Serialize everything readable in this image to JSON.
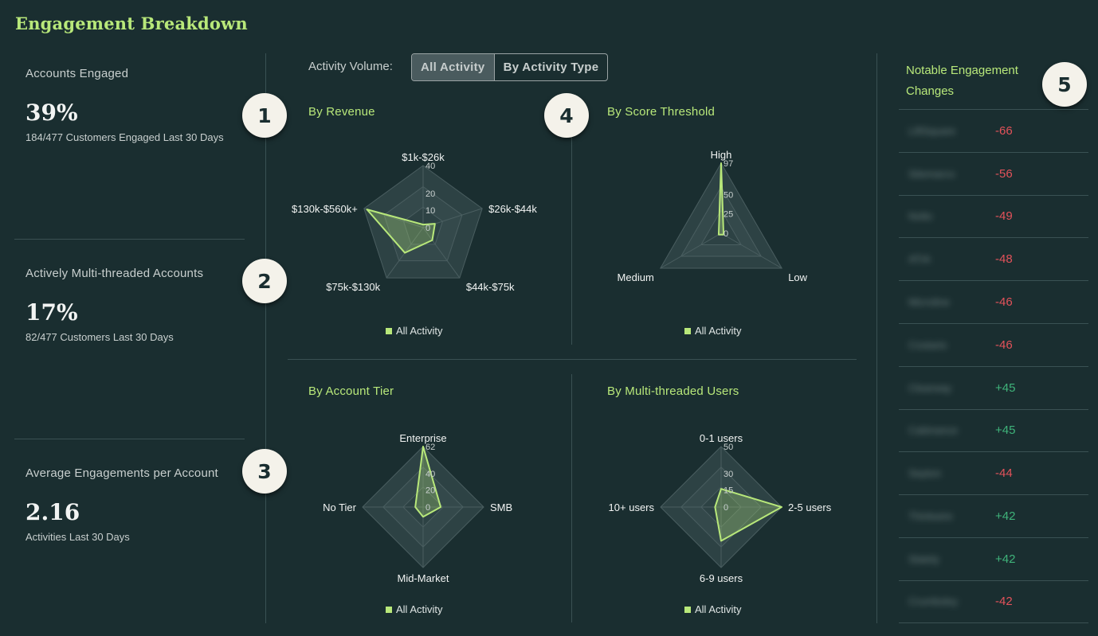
{
  "page_title": "Engagement Breakdown",
  "metrics": [
    {
      "label": "Accounts Engaged",
      "value": "39%",
      "sub": "184/477 Customers Engaged Last 30 Days"
    },
    {
      "label": "Actively Multi-threaded Accounts",
      "value": "17%",
      "sub": "82/477 Customers Last 30 Days"
    },
    {
      "label": "Average Engagements per Account",
      "value": "2.16",
      "sub": "Activities Last 30 Days"
    }
  ],
  "badges": [
    "1",
    "2",
    "3",
    "4",
    "5"
  ],
  "toggle": {
    "label": "Activity Volume:",
    "options": [
      "All Activity",
      "By Activity Type"
    ],
    "selected": "All Activity"
  },
  "colors": {
    "accent": "#b8e87a",
    "background": "#1a2e30",
    "negative": "#e2525a",
    "positive": "#3fb37a"
  },
  "chart_data": [
    {
      "type": "radar",
      "title": "By Revenue",
      "categories": [
        "$1k-$26k",
        "$26k-$44k",
        "$44k-$75k",
        "$75k-$130k",
        "$130k-$560k+"
      ],
      "ticks": [
        "0",
        "10",
        "20",
        "40"
      ],
      "range": [
        0,
        40
      ],
      "series": [
        {
          "name": "All Activity",
          "values": [
            2,
            8,
            10,
            20,
            38
          ]
        }
      ]
    },
    {
      "type": "radar",
      "title": "By Score Threshold",
      "categories": [
        "High",
        "Low",
        "Medium"
      ],
      "ticks": [
        "0",
        "25",
        "50",
        "97"
      ],
      "range": [
        0,
        97
      ],
      "series": [
        {
          "name": "All Activity",
          "values": [
            97,
            2,
            2
          ]
        }
      ]
    },
    {
      "type": "radar",
      "title": "By Account Tier",
      "categories": [
        "Enterprise",
        "SMB",
        "Mid-Market",
        "No Tier"
      ],
      "ticks": [
        "0",
        "20",
        "40",
        "62"
      ],
      "range": [
        0,
        62
      ],
      "series": [
        {
          "name": "All Activity",
          "values": [
            62,
            18,
            10,
            8
          ]
        }
      ]
    },
    {
      "type": "radar",
      "title": "By Multi-threaded Users",
      "categories": [
        "0-1 users",
        "2-5 users",
        "6-9 users",
        "10+ users"
      ],
      "ticks": [
        "0",
        "15",
        "30",
        "50"
      ],
      "range": [
        0,
        50
      ],
      "series": [
        {
          "name": "All Activity",
          "values": [
            15,
            50,
            28,
            5
          ]
        }
      ]
    }
  ],
  "notable": {
    "title": "Notable Engagement Changes",
    "items": [
      {
        "name": "LiftSquare",
        "delta": "-66",
        "dir": "neg"
      },
      {
        "name": "Sitemarco",
        "delta": "-56",
        "dir": "neg"
      },
      {
        "name": "Nolto",
        "delta": "-49",
        "dir": "neg"
      },
      {
        "name": "ATIA",
        "delta": "-48",
        "dir": "neg"
      },
      {
        "name": "Microline",
        "delta": "-46",
        "dir": "neg"
      },
      {
        "name": "Costario",
        "delta": "-46",
        "dir": "neg"
      },
      {
        "name": "Clearway",
        "delta": "+45",
        "dir": "pos"
      },
      {
        "name": "Cabinance",
        "delta": "+45",
        "dir": "pos"
      },
      {
        "name": "Septon",
        "delta": "-44",
        "dir": "neg"
      },
      {
        "name": "Thinkwire",
        "delta": "+42",
        "dir": "pos"
      },
      {
        "name": "Slately",
        "delta": "+42",
        "dir": "pos"
      },
      {
        "name": "Crumbsley",
        "delta": "-42",
        "dir": "neg"
      }
    ]
  }
}
